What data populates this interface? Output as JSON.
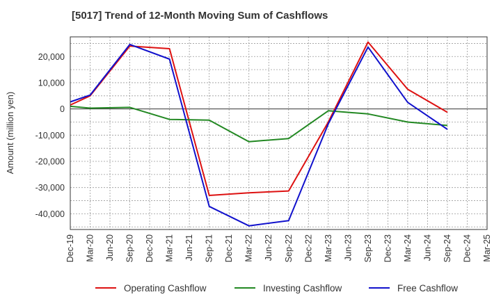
{
  "title": "[5017]  Trend of 12-Month Moving Sum of Cashflows",
  "chart_data": {
    "type": "line",
    "title": "[5017]  Trend of 12-Month Moving Sum of Cashflows",
    "xlabel": "",
    "ylabel": "Amount (million yen)",
    "categories": [
      "Dec-19",
      "Mar-20",
      "Jun-20",
      "Sep-20",
      "Dec-20",
      "Mar-21",
      "Jun-21",
      "Sep-21",
      "Dec-21",
      "Mar-22",
      "Jun-22",
      "Sep-22",
      "Dec-22",
      "Mar-23",
      "Jun-23",
      "Sep-23",
      "Dec-23",
      "Mar-24",
      "Jun-24",
      "Sep-24",
      "Dec-24",
      "Mar-25"
    ],
    "ylim": [
      -46000,
      27500
    ],
    "yticks": [
      20000,
      10000,
      0,
      -10000,
      -20000,
      -30000,
      -40000
    ],
    "ytick_labels": [
      "20,000",
      "10,000",
      "0",
      "-10,000",
      "-20,000",
      "-30,000",
      "-40,000"
    ],
    "grid": true,
    "legend_position": "bottom",
    "series": [
      {
        "name": "Operating Cashflow",
        "color": "#dd1111",
        "points": [
          {
            "x": "Dec-19",
            "y": 1500
          },
          {
            "x": "Mar-20",
            "y": 5000
          },
          {
            "x": "Sep-20",
            "y": 24000
          },
          {
            "x": "Mar-21",
            "y": 23000
          },
          {
            "x": "Sep-21",
            "y": -33000
          },
          {
            "x": "Mar-22",
            "y": -32000
          },
          {
            "x": "Sep-22",
            "y": -31300
          },
          {
            "x": "Mar-23",
            "y": -5000
          },
          {
            "x": "Sep-23",
            "y": 25500
          },
          {
            "x": "Mar-24",
            "y": 7500
          },
          {
            "x": "Sep-24",
            "y": -1300
          }
        ]
      },
      {
        "name": "Investing Cashflow",
        "color": "#228822",
        "points": [
          {
            "x": "Dec-19",
            "y": 1000
          },
          {
            "x": "Mar-20",
            "y": 300
          },
          {
            "x": "Sep-20",
            "y": 600
          },
          {
            "x": "Mar-21",
            "y": -4000
          },
          {
            "x": "Sep-21",
            "y": -4300
          },
          {
            "x": "Mar-22",
            "y": -12500
          },
          {
            "x": "Sep-22",
            "y": -11300
          },
          {
            "x": "Mar-23",
            "y": -700
          },
          {
            "x": "Sep-23",
            "y": -1900
          },
          {
            "x": "Mar-24",
            "y": -5000
          },
          {
            "x": "Sep-24",
            "y": -6300
          }
        ]
      },
      {
        "name": "Free Cashflow",
        "color": "#1111cc",
        "points": [
          {
            "x": "Dec-19",
            "y": 2700
          },
          {
            "x": "Mar-20",
            "y": 5300
          },
          {
            "x": "Sep-20",
            "y": 24600
          },
          {
            "x": "Mar-21",
            "y": 19000
          },
          {
            "x": "Sep-21",
            "y": -37200
          },
          {
            "x": "Mar-22",
            "y": -44600
          },
          {
            "x": "Sep-22",
            "y": -42600
          },
          {
            "x": "Mar-23",
            "y": -5700
          },
          {
            "x": "Sep-23",
            "y": 23600
          },
          {
            "x": "Mar-24",
            "y": 2500
          },
          {
            "x": "Sep-24",
            "y": -7800
          }
        ]
      }
    ]
  }
}
